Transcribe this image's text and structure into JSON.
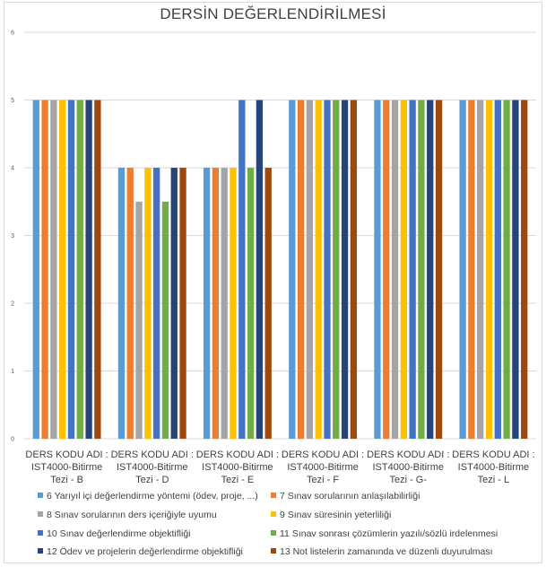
{
  "chart_data": {
    "type": "bar",
    "title": "DERSİN DEĞERLENDİRİLMESİ",
    "xlabel": "",
    "ylabel": "",
    "ylim": [
      0,
      6
    ],
    "yticks": [
      "0",
      "1",
      "2",
      "3",
      "4",
      "5",
      "6"
    ],
    "grid": true,
    "legend_position": "bottom",
    "categories": [
      [
        "DERS KODU ADI :",
        "IST4000-Bitirme",
        "Tezi - B"
      ],
      [
        "DERS KODU ADI :",
        "IST4000-Bitirme",
        "Tezi - D"
      ],
      [
        "DERS KODU ADI :",
        "IST4000-Bitirme",
        "Tezi - E"
      ],
      [
        "DERS KODU ADI :",
        "IST4000-Bitirme",
        "Tezi - F"
      ],
      [
        "DERS KODU ADI :",
        "IST4000-Bitirme",
        "Tezi - G-"
      ],
      [
        "DERS KODU ADI :",
        "IST4000-Bitirme",
        "Tezi - L"
      ]
    ],
    "series": [
      {
        "name": "6 Yarıyıl içi değerlendirme yöntemi (ödev, proje, ...)",
        "color": "#5b9bd5",
        "values": [
          5,
          4,
          4,
          5,
          5,
          5
        ]
      },
      {
        "name": "7 Sınav sorularının anlaşılabilirliği",
        "color": "#ed7d31",
        "values": [
          5,
          4,
          4,
          5,
          5,
          5
        ]
      },
      {
        "name": "8 Sınav sorularının ders içeriğiyle uyumu",
        "color": "#a5a5a5",
        "values": [
          5,
          3.5,
          4,
          5,
          5,
          5
        ]
      },
      {
        "name": "9 Sınav süresinin yeterliliği",
        "color": "#ffc000",
        "values": [
          5,
          4,
          4,
          5,
          5,
          5
        ]
      },
      {
        "name": "10 Sınav değerlendirme objektifliği",
        "color": "#4472c4",
        "values": [
          5,
          4,
          5,
          5,
          5,
          5
        ]
      },
      {
        "name": "11 Sınav sonrası çözümlerin yazılı/sözlü irdelenmesi",
        "color": "#70ad47",
        "values": [
          5,
          3.5,
          4,
          5,
          5,
          5
        ]
      },
      {
        "name": "12 Ödev ve projelerin değerlendirme objektifliği",
        "color": "#264478",
        "values": [
          5,
          4,
          5,
          5,
          5,
          5
        ]
      },
      {
        "name": "13 Not listelerin zamanında ve düzenli duyurulması",
        "color": "#9e480e",
        "values": [
          5,
          4,
          4,
          5,
          5,
          5
        ]
      }
    ]
  }
}
